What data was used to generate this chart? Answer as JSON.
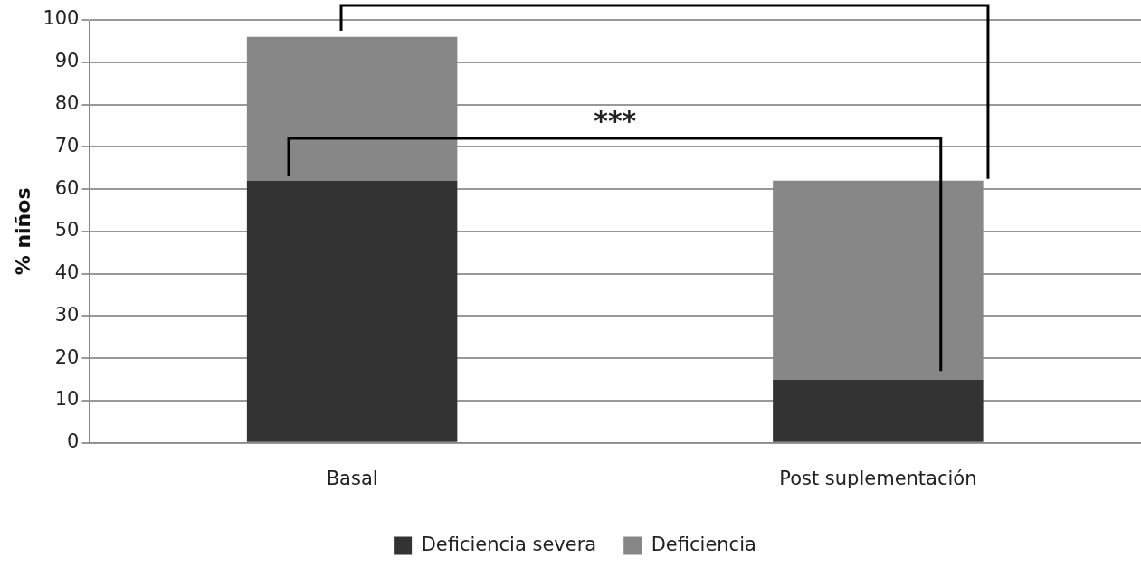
{
  "chart_data": {
    "type": "bar",
    "stacked": true,
    "ylabel": "% niños",
    "categories": [
      "Basal",
      "Post suplementación"
    ],
    "series": [
      {
        "name": "Deficiencia severa",
        "color": "#333333",
        "values": [
          62,
          15
        ]
      },
      {
        "name": "Deficiencia",
        "color": "#878787",
        "values": [
          34,
          47
        ]
      }
    ],
    "ylim": [
      0,
      100
    ],
    "yticks": [
      0,
      10,
      20,
      30,
      40,
      50,
      60,
      70,
      80,
      90,
      100
    ],
    "grid": "y",
    "legend": "bottom",
    "annotations": [
      "***"
    ]
  }
}
